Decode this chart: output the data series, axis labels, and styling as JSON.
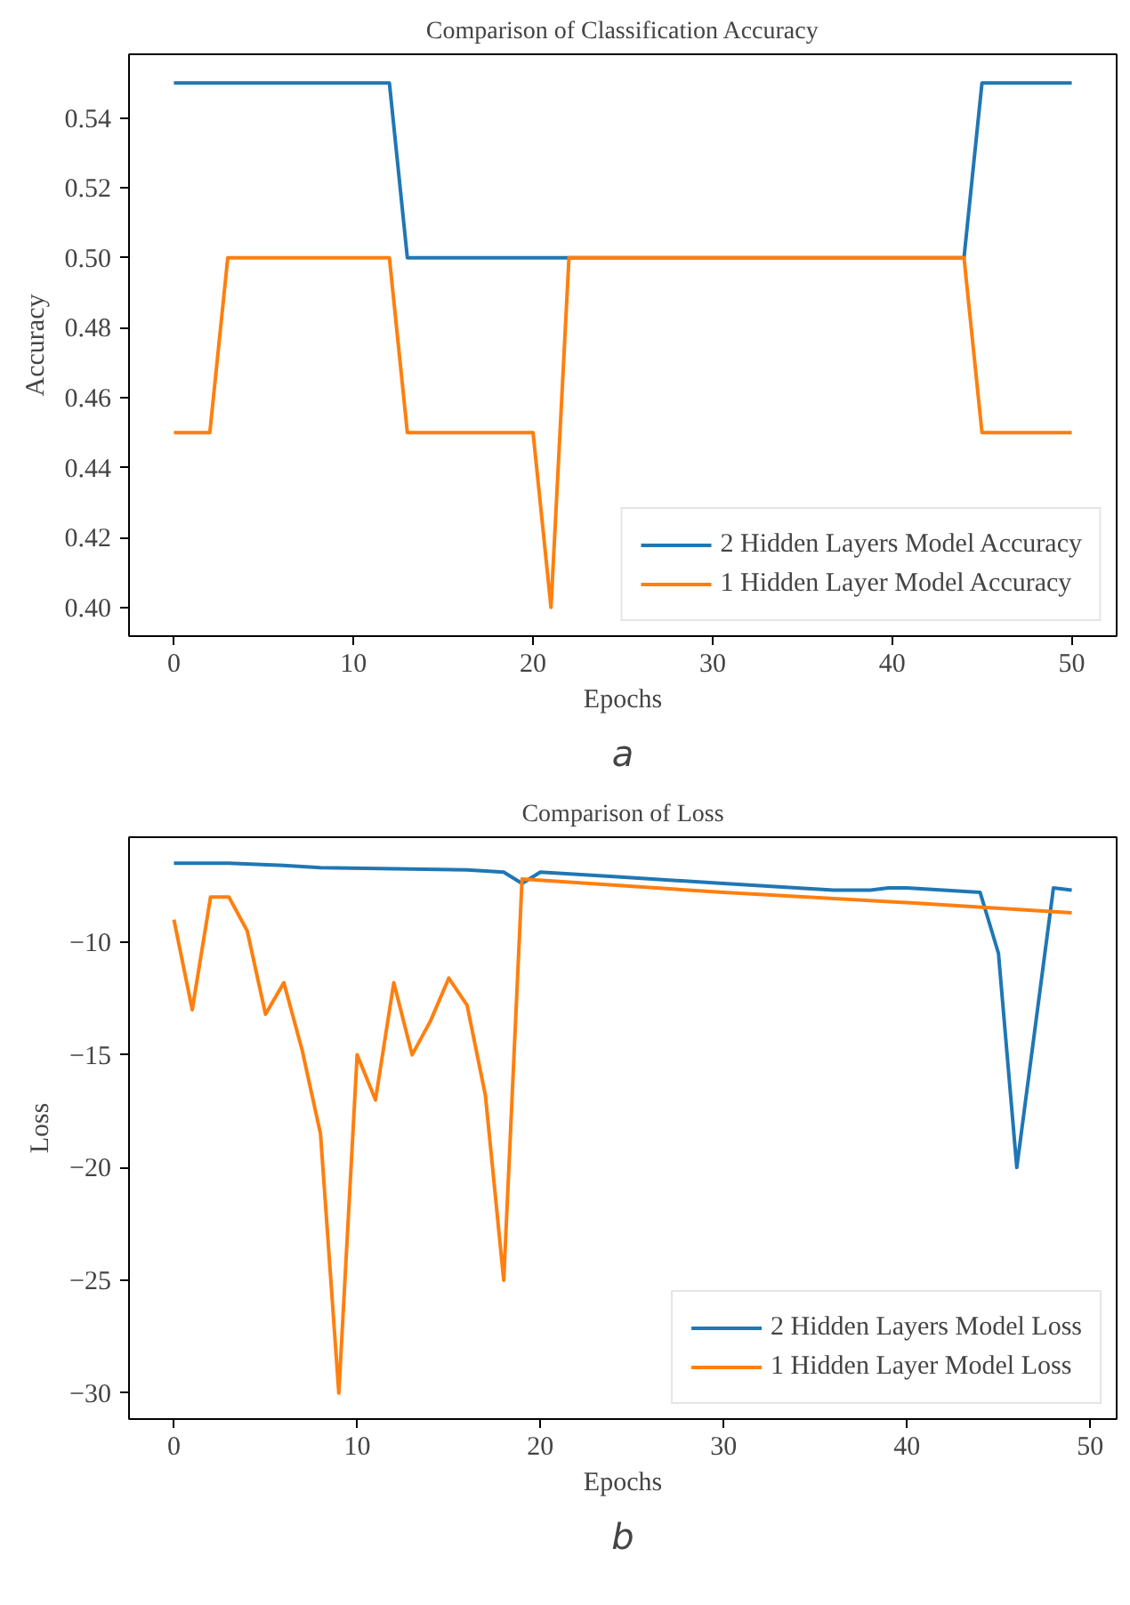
{
  "chart_data": [
    {
      "type": "line",
      "title": "Comparison of Classification Accuracy",
      "xlabel": "Epochs",
      "ylabel": "Accuracy",
      "annotations": [
        "a"
      ],
      "xlim": [
        -2.5,
        52.5
      ],
      "ylim": [
        0.3918,
        0.5582
      ],
      "xticks": [
        0,
        10,
        20,
        30,
        40,
        50
      ],
      "yticks": [
        {
          "value": 0.4,
          "label": "0.40"
        },
        {
          "value": 0.42,
          "label": "0.42"
        },
        {
          "value": 0.44,
          "label": "0.44"
        },
        {
          "value": 0.46,
          "label": "0.46"
        },
        {
          "value": 0.48,
          "label": "0.48"
        },
        {
          "value": 0.5,
          "label": "0.50"
        },
        {
          "value": 0.52,
          "label": "0.52"
        },
        {
          "value": 0.54,
          "label": "0.54"
        }
      ],
      "grid": false,
      "legend": "bottom right",
      "marker": "none",
      "line_style": "solid",
      "series": [
        {
          "name": "2 Hidden Layers Model Accuracy",
          "color": "#1f77b4",
          "x": [
            0,
            12,
            13,
            44,
            45,
            50
          ],
          "values": [
            0.55,
            0.55,
            0.5,
            0.5,
            0.55,
            0.55
          ]
        },
        {
          "name": "1 Hidden Layer Model Accuracy",
          "color": "#ff7f0e",
          "x": [
            0,
            2,
            3,
            12,
            13,
            20,
            21,
            22,
            44,
            45,
            50
          ],
          "values": [
            0.45,
            0.45,
            0.5,
            0.5,
            0.45,
            0.45,
            0.4,
            0.5,
            0.5,
            0.45,
            0.45
          ]
        }
      ]
    },
    {
      "type": "line",
      "title": "Comparison of Loss",
      "xlabel": "Epochs",
      "ylabel": "Loss",
      "annotations": [
        "b"
      ],
      "xlim": [
        -2.45,
        51.45
      ],
      "ylim": [
        -31.15,
        -5.35
      ],
      "xticks": [
        0,
        10,
        20,
        30,
        40,
        50
      ],
      "yticks": [
        {
          "value": -10,
          "label": "−10"
        },
        {
          "value": -15,
          "label": "−15"
        },
        {
          "value": -20,
          "label": "−20"
        },
        {
          "value": -25,
          "label": "−25"
        },
        {
          "value": -30,
          "label": "−30"
        }
      ],
      "grid": false,
      "legend": "bottom right",
      "marker": "none",
      "line_style": "solid",
      "series": [
        {
          "name": "2 Hidden Layers Model Loss",
          "color": "#1f77b4",
          "x": [
            0,
            3,
            6,
            8,
            16,
            18,
            19,
            20,
            24,
            30,
            36,
            37,
            38,
            39,
            40,
            44,
            45,
            46,
            48,
            49
          ],
          "values": [
            -6.5,
            -6.5,
            -6.6,
            -6.7,
            -6.8,
            -6.9,
            -7.4,
            -6.9,
            -7.1,
            -7.4,
            -7.7,
            -7.7,
            -7.7,
            -7.6,
            -7.6,
            -7.8,
            -10.5,
            -20,
            -7.6,
            -7.7
          ]
        },
        {
          "name": "1 Hidden Layer Model Loss",
          "color": "#ff7f0e",
          "x": [
            0,
            1,
            2,
            3,
            4,
            5,
            6,
            7,
            8,
            9,
            10,
            11,
            12,
            13,
            14,
            15,
            16,
            17,
            18,
            19,
            30,
            40,
            49
          ],
          "values": [
            -9,
            -13,
            -8,
            -8,
            -9.5,
            -13.2,
            -11.8,
            -14.8,
            -18.5,
            -30,
            -15,
            -17,
            -11.8,
            -15,
            -13.5,
            -11.6,
            -12.8,
            -16.8,
            -25,
            -7.2,
            -7.8,
            -8.25,
            -8.7
          ]
        }
      ]
    }
  ]
}
